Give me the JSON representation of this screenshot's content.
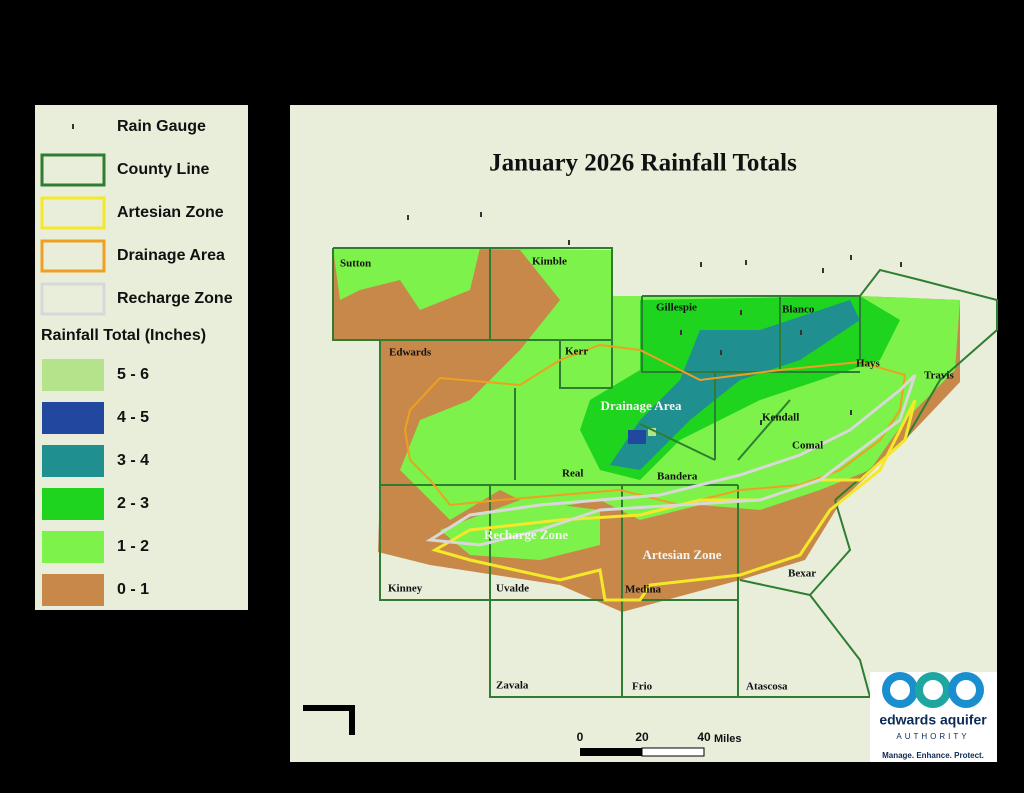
{
  "legend": {
    "items": [
      {
        "label": "Rain Gauge",
        "kind": "gauge"
      },
      {
        "label": "County Line",
        "kind": "outline",
        "color": "#2e7d32"
      },
      {
        "label": "Artesian Zone",
        "kind": "outline",
        "color": "#f5e82a"
      },
      {
        "label": "Drainage Area",
        "kind": "outline",
        "color": "#f0a020"
      },
      {
        "label": "Recharge Zone",
        "kind": "outline",
        "color": "#d8d8d8"
      }
    ],
    "heading": "Rainfall Total (Inches)",
    "classes": [
      {
        "label": "5 - 6",
        "color": "#b5e38c"
      },
      {
        "label": "4 - 5",
        "color": "#22479e"
      },
      {
        "label": "3 - 4",
        "color": "#1f8f8f"
      },
      {
        "label": "2 - 3",
        "color": "#1ed41e"
      },
      {
        "label": "1 - 2",
        "color": "#7cf24a"
      },
      {
        "label": "0 - 1",
        "color": "#c8884a"
      }
    ]
  },
  "map": {
    "title": "January 2026 Rainfall Totals",
    "counties": [
      "Sutton",
      "Kimble",
      "Gillespie",
      "Blanco",
      "Edwards",
      "Kerr",
      "Hays",
      "Travis",
      "Kendall",
      "Comal",
      "Real",
      "Bandera",
      "Kinney",
      "Uvalde",
      "Medina",
      "Bexar",
      "Zavala",
      "Frio",
      "Atascosa"
    ],
    "zones": [
      "Drainage Area",
      "Recharge Zone",
      "Artesian Zone"
    ]
  },
  "scale_bar": {
    "ticks": [
      0,
      20,
      40
    ],
    "unit": "Miles"
  },
  "logo": {
    "name": "edwards aquifer",
    "org": "AUTHORITY",
    "motto": "Manage. Enhance. Protect."
  }
}
